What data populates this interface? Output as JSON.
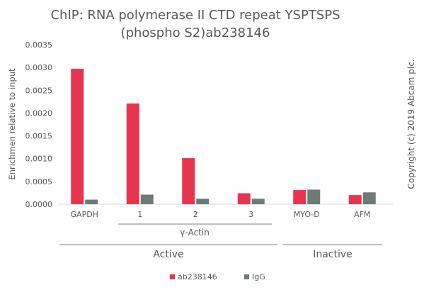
{
  "chart_data": {
    "type": "bar",
    "title_lines": [
      "ChIP: RNA polymerase II CTD repeat YSPTSPS",
      "(phospho S2)ab238146"
    ],
    "ylabel": "Enrichmen relative to input",
    "ylim": [
      0,
      0.0035
    ],
    "yticks": [
      "0.0000",
      "0.0005",
      "0.0010",
      "0.0015",
      "0.0020",
      "0.0025",
      "0.0030",
      "0.0035"
    ],
    "categories": [
      "GAPDH",
      "1",
      "2",
      "3",
      "MYO-D",
      "AFM"
    ],
    "sub_group_label": "γ-Actin",
    "group_labels": [
      "Active",
      "Inactive"
    ],
    "series": [
      {
        "name": "ab238146",
        "color": "#e8344e",
        "values": [
          0.00297,
          0.00221,
          0.00101,
          0.00024,
          0.00031,
          0.0002
        ]
      },
      {
        "name": "IgG",
        "color": "#6d7b77",
        "values": [
          0.0001,
          0.00021,
          0.00012,
          0.00012,
          0.00032,
          0.00026
        ]
      }
    ],
    "grid": false,
    "legend_position": "bottom"
  },
  "copyright": "Copyright (c) 2019 Abcam plc."
}
